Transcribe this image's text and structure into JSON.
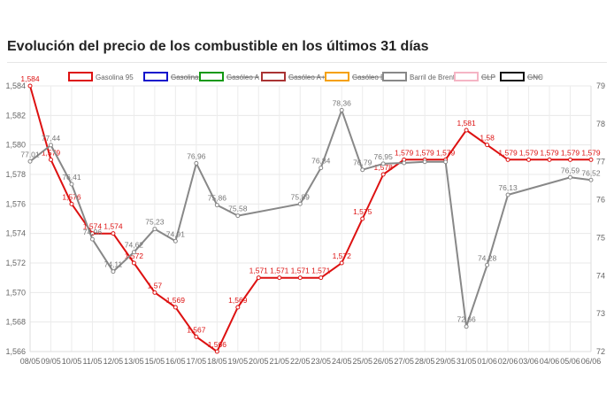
{
  "title": "Evolución del precio de los combustible en los últimos 31 días",
  "chart_data": {
    "type": "line",
    "categories": [
      "08/05",
      "09/05",
      "10/05",
      "11/05",
      "12/05",
      "13/05",
      "15/05",
      "16/05",
      "17/05",
      "18/05",
      "19/05",
      "20/05",
      "21/05",
      "22/05",
      "23/05",
      "24/05",
      "25/05",
      "26/05",
      "27/05",
      "28/05",
      "29/05",
      "31/05",
      "01/06",
      "02/06",
      "03/06",
      "04/06",
      "05/06",
      "06/06"
    ],
    "y_left": {
      "ylim": [
        1.566,
        1.584
      ],
      "ticks": [
        "1,566",
        "1,568",
        "1,570",
        "1,572",
        "1,574",
        "1,576",
        "1,578",
        "1,580",
        "1,582",
        "1,584"
      ]
    },
    "y_right": {
      "ylim": [
        72,
        79
      ],
      "ticks": [
        "72",
        "73",
        "74",
        "75",
        "76",
        "77",
        "78",
        "79"
      ]
    },
    "grid": true,
    "legend_position": "top",
    "legend": [
      {
        "name": "Gasolina 95",
        "color": "#dd1111",
        "hidden": false
      },
      {
        "name": "Gasolina 98",
        "color": "#1111cc",
        "hidden": true
      },
      {
        "name": "Gasóleo A",
        "color": "#119911",
        "hidden": true
      },
      {
        "name": "Gasóleo A+",
        "color": "#aa3333",
        "hidden": true
      },
      {
        "name": "Gasóleo B",
        "color": "#f5a000",
        "hidden": true
      },
      {
        "name": "Barril de Brent",
        "color": "#888888",
        "hidden": false
      },
      {
        "name": "GLP",
        "color": "#f5b5c5",
        "hidden": true
      },
      {
        "name": "GNC",
        "color": "#111111",
        "hidden": true
      }
    ],
    "series": [
      {
        "name": "Gasolina 95",
        "axis": "left",
        "color": "#dd1111",
        "values": [
          1.584,
          1.579,
          1.576,
          1.574,
          1.574,
          1.572,
          1.57,
          1.569,
          1.567,
          1.566,
          1.569,
          1.571,
          1.571,
          1.571,
          1.571,
          1.572,
          1.575,
          1.578,
          1.579,
          1.579,
          1.579,
          1.581,
          1.58,
          1.579,
          1.579,
          1.579,
          1.579,
          1.579
        ],
        "labels": [
          "1,584",
          "1,579",
          "1,576",
          "1,574",
          "1,574",
          "1,572",
          "1,57",
          "1,569",
          "1,567",
          "1,566",
          "1,569",
          "1,571",
          "1,571",
          "1,571",
          "1,571",
          "1,572",
          "1,575",
          "1,578",
          "1,579",
          "1,579",
          "1,579",
          "1,581",
          "1,58",
          "1,579",
          "1,579",
          "1,579",
          "1,579",
          "1,579"
        ]
      },
      {
        "name": "Barril de Brent",
        "axis": "right",
        "color": "#888888",
        "values": [
          77.01,
          77.44,
          76.41,
          74.96,
          74.11,
          74.62,
          75.23,
          74.91,
          76.96,
          75.86,
          75.58,
          null,
          null,
          75.89,
          76.84,
          78.36,
          76.79,
          76.95,
          76.97,
          77.0,
          77.0,
          72.66,
          74.28,
          76.13,
          null,
          null,
          76.59,
          76.52
        ],
        "labels": [
          "77,01",
          "77,44",
          "76,41",
          "74,96",
          "74,11",
          "74,62",
          "75,23",
          "74,91",
          "76,96",
          "75,86",
          "75,58",
          "",
          "",
          "75,89",
          "76,84",
          "78,36",
          "76,79",
          "76,95",
          "",
          "",
          "",
          "72,66",
          "74,28",
          "76,13",
          "",
          "",
          "76,59",
          "76,52"
        ]
      }
    ]
  }
}
